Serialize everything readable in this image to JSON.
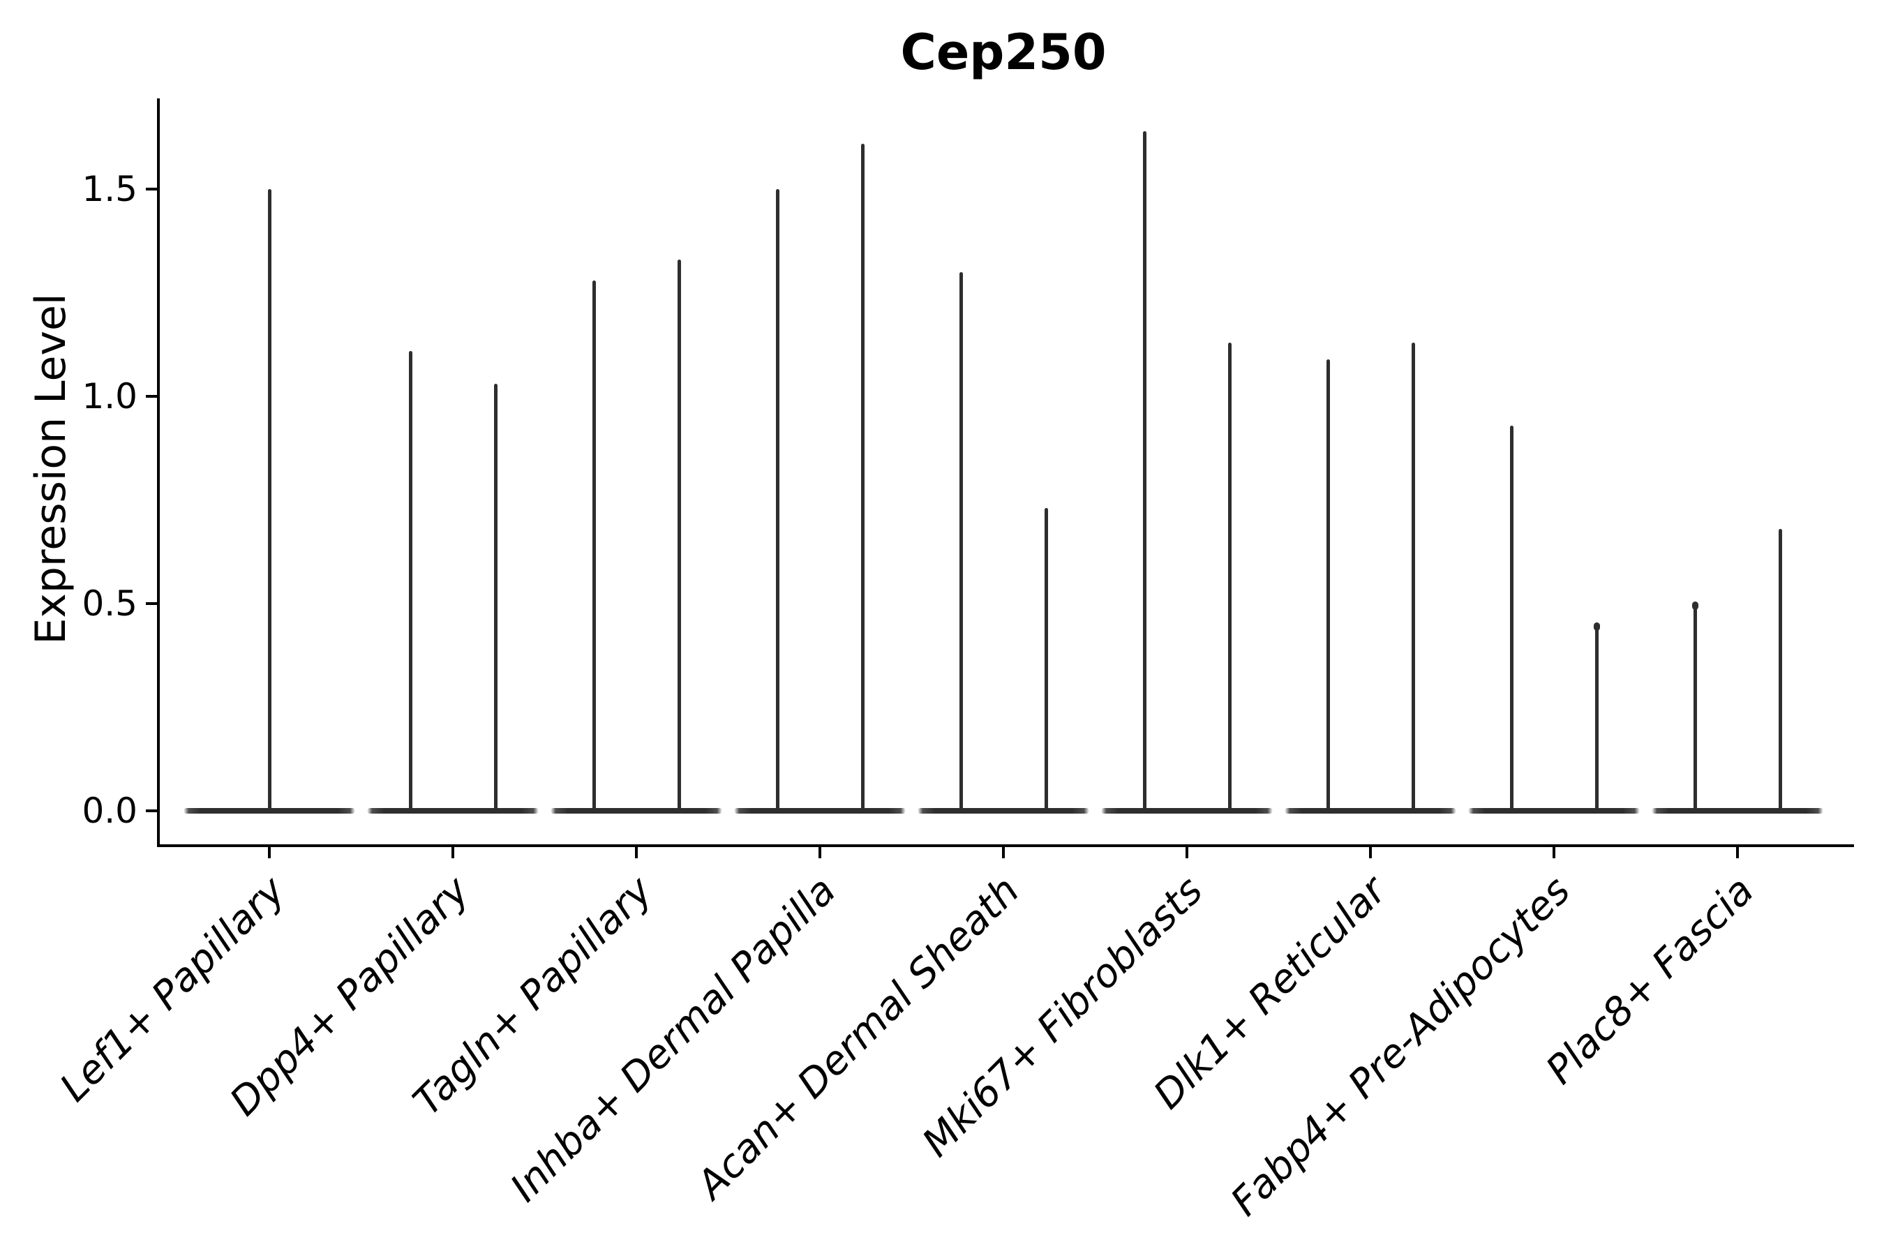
{
  "title": "Cep250",
  "ylabel": "Expression Level",
  "chart_data": {
    "type": "violin",
    "title": "Cep250",
    "xlabel": "",
    "ylabel": "Expression Level",
    "ylim": [
      -0.085,
      1.72
    ],
    "yticks": [
      0.0,
      0.5,
      1.0,
      1.5
    ],
    "ytick_labels": [
      "0.0",
      "0.5",
      "1.0",
      "1.5"
    ],
    "grid": false,
    "legend": "none",
    "distribution_note": "Each violin has nearly all density at expression 0 (wide flat base) with a hairline spike reaching the maximum expression value",
    "categories": [
      "Lef1+ Papillary",
      "Dpp4+ Papillary",
      "Tagln+ Papillary",
      "Inhba+ Dermal Papilla",
      "Acan+ Dermal Sheath",
      "Mki67+ Fibroblasts",
      "Dlk1+ Reticular",
      "Fabp4+ Pre-Adipocytes",
      "Plac8+ Fascia"
    ],
    "violins": [
      {
        "category": "Lef1+ Papillary",
        "spikes": [
          {
            "max": 1.5,
            "cap_dot": false
          }
        ]
      },
      {
        "category": "Dpp4+ Papillary",
        "spikes": [
          {
            "max": 1.11,
            "cap_dot": false
          },
          {
            "max": 1.03,
            "cap_dot": false
          }
        ]
      },
      {
        "category": "Tagln+ Papillary",
        "spikes": [
          {
            "max": 1.28,
            "cap_dot": false
          },
          {
            "max": 1.33,
            "cap_dot": false
          }
        ]
      },
      {
        "category": "Inhba+ Dermal Papilla",
        "spikes": [
          {
            "max": 1.5,
            "cap_dot": false
          },
          {
            "max": 1.61,
            "cap_dot": false
          }
        ]
      },
      {
        "category": "Acan+ Dermal Sheath",
        "spikes": [
          {
            "max": 1.3,
            "cap_dot": false
          },
          {
            "max": 0.73,
            "cap_dot": false
          }
        ]
      },
      {
        "category": "Mki67+ Fibroblasts",
        "spikes": [
          {
            "max": 1.64,
            "cap_dot": false
          },
          {
            "max": 1.13,
            "cap_dot": false
          }
        ]
      },
      {
        "category": "Dlk1+ Reticular",
        "spikes": [
          {
            "max": 1.09,
            "cap_dot": false
          },
          {
            "max": 1.13,
            "cap_dot": false
          }
        ]
      },
      {
        "category": "Fabp4+ Pre-Adipocytes",
        "spikes": [
          {
            "max": 0.93,
            "cap_dot": false
          },
          {
            "max": 0.45,
            "cap_dot": true
          }
        ]
      },
      {
        "category": "Plac8+ Fascia",
        "spikes": [
          {
            "max": 0.5,
            "cap_dot": true
          },
          {
            "max": 0.68,
            "cap_dot": false
          }
        ]
      }
    ],
    "colors": {
      "spike": "#2e2e2e",
      "axes": "#000000",
      "text": "#000000",
      "background": "#ffffff"
    }
  }
}
